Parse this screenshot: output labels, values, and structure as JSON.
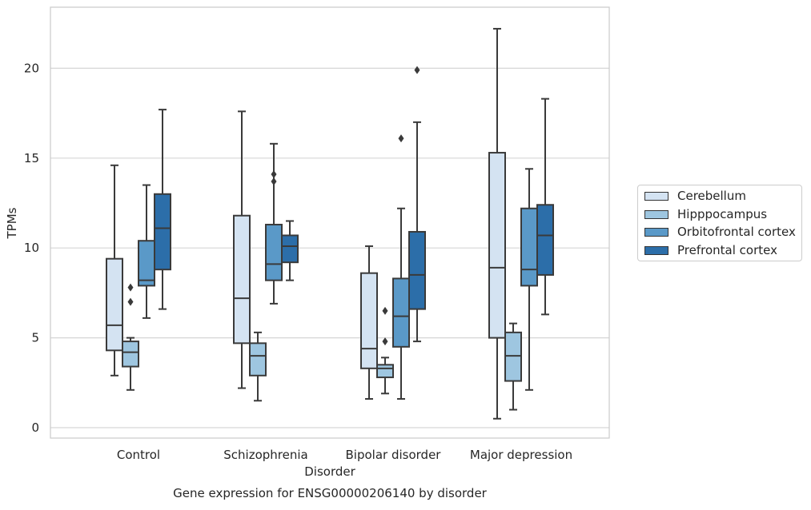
{
  "chart_data": {
    "type": "box",
    "title": "Gene expression for ENSG00000206140 by disorder",
    "xlabel": "Disorder",
    "ylabel": "TPMs",
    "ylim": [
      -0.5,
      23.4
    ],
    "yticks": [
      0,
      5,
      10,
      15,
      20
    ],
    "grid": "horizontal",
    "legend_placement": "right",
    "categories": [
      "Control",
      "Schizophrenia",
      "Bipolar disorder",
      "Major depression"
    ],
    "series": [
      {
        "name": "Cerebellum",
        "color": "#d4e3f2",
        "boxes": [
          {
            "whislo": 2.9,
            "q1": 4.3,
            "med": 5.7,
            "q3": 9.4,
            "whishi": 14.6,
            "fliers": []
          },
          {
            "whislo": 2.2,
            "q1": 4.7,
            "med": 7.2,
            "q3": 11.8,
            "whishi": 17.6,
            "fliers": []
          },
          {
            "whislo": 1.6,
            "q1": 3.3,
            "med": 4.4,
            "q3": 8.6,
            "whishi": 10.1,
            "fliers": []
          },
          {
            "whislo": 0.5,
            "q1": 5.0,
            "med": 8.9,
            "q3": 15.3,
            "whishi": 22.2,
            "fliers": []
          }
        ]
      },
      {
        "name": "Hipppocampus",
        "color": "#9ec6e0",
        "boxes": [
          {
            "whislo": 2.1,
            "q1": 3.4,
            "med": 4.2,
            "q3": 4.8,
            "whishi": 5.0,
            "fliers": [
              7.0,
              7.8
            ]
          },
          {
            "whislo": 1.5,
            "q1": 2.9,
            "med": 4.0,
            "q3": 4.7,
            "whishi": 5.3,
            "fliers": []
          },
          {
            "whislo": 1.9,
            "q1": 2.8,
            "med": 3.3,
            "q3": 3.5,
            "whishi": 3.9,
            "fliers": [
              4.8,
              6.5
            ]
          },
          {
            "whislo": 1.0,
            "q1": 2.6,
            "med": 4.0,
            "q3": 5.3,
            "whishi": 5.8,
            "fliers": []
          }
        ]
      },
      {
        "name": "Orbitofrontal cortex",
        "color": "#5a99c8",
        "boxes": [
          {
            "whislo": 6.1,
            "q1": 7.9,
            "med": 8.2,
            "q3": 10.4,
            "whishi": 13.5,
            "fliers": []
          },
          {
            "whislo": 6.9,
            "q1": 8.2,
            "med": 9.1,
            "q3": 11.3,
            "whishi": 15.8,
            "fliers": [
              13.7,
              14.1
            ]
          },
          {
            "whislo": 1.6,
            "q1": 4.5,
            "med": 6.2,
            "q3": 8.3,
            "whishi": 12.2,
            "fliers": [
              16.1
            ]
          },
          {
            "whislo": 2.1,
            "q1": 7.9,
            "med": 8.8,
            "q3": 12.2,
            "whishi": 14.4,
            "fliers": []
          }
        ]
      },
      {
        "name": "Prefrontal cortex",
        "color": "#2c6ea9",
        "boxes": [
          {
            "whislo": 6.6,
            "q1": 8.8,
            "med": 11.1,
            "q3": 13.0,
            "whishi": 17.7,
            "fliers": []
          },
          {
            "whislo": 8.2,
            "q1": 9.2,
            "med": 10.1,
            "q3": 10.7,
            "whishi": 11.5,
            "fliers": []
          },
          {
            "whislo": 4.8,
            "q1": 6.6,
            "med": 8.5,
            "q3": 10.9,
            "whishi": 17.0,
            "fliers": [
              19.9
            ]
          },
          {
            "whislo": 6.3,
            "q1": 8.5,
            "med": 10.7,
            "q3": 12.4,
            "whishi": 18.3,
            "fliers": []
          }
        ]
      }
    ]
  }
}
